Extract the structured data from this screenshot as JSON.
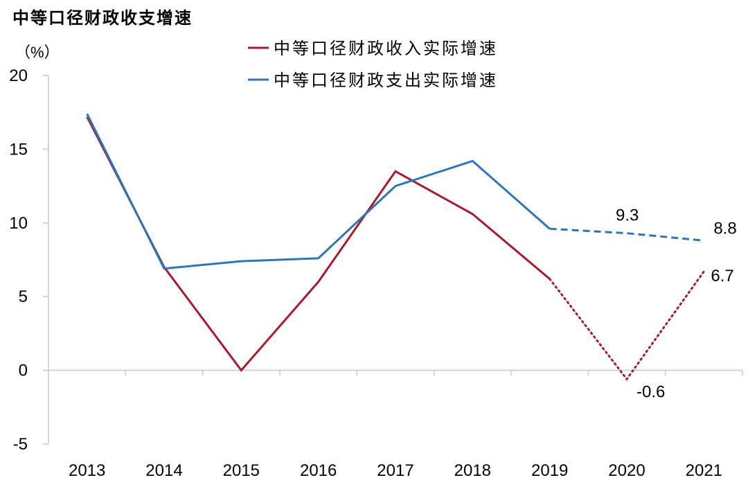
{
  "chart_data": {
    "type": "line",
    "title": "中等口径财政收支增速",
    "ylabel": "（%）",
    "xlabel": "",
    "categories": [
      "2013",
      "2014",
      "2015",
      "2016",
      "2017",
      "2018",
      "2019",
      "2020",
      "2021"
    ],
    "ylim": [
      -5,
      20
    ],
    "yticks": [
      -5,
      0,
      5,
      10,
      15,
      20
    ],
    "grid": false,
    "legend_position": "top-center",
    "series": [
      {
        "name": "中等口径财政收入实际增速",
        "color": "#A6192E",
        "values": [
          17.2,
          7.0,
          0.0,
          6.0,
          13.5,
          10.6,
          6.2,
          -0.6,
          6.7
        ],
        "solid_until_index": 6,
        "projection_style": "dotted"
      },
      {
        "name": "中等口径财政支出实际增速",
        "color": "#2E75B6",
        "values": [
          17.4,
          6.9,
          7.4,
          7.6,
          12.5,
          14.2,
          9.6,
          9.3,
          8.8
        ],
        "solid_until_index": 6,
        "projection_style": "dashed"
      }
    ],
    "annotations": [
      {
        "series": 1,
        "x": "2020",
        "text": "9.3"
      },
      {
        "series": 1,
        "x": "2021",
        "text": "8.8"
      },
      {
        "series": 0,
        "x": "2020",
        "text": "-0.6"
      },
      {
        "series": 0,
        "x": "2021",
        "text": "6.7"
      }
    ]
  }
}
